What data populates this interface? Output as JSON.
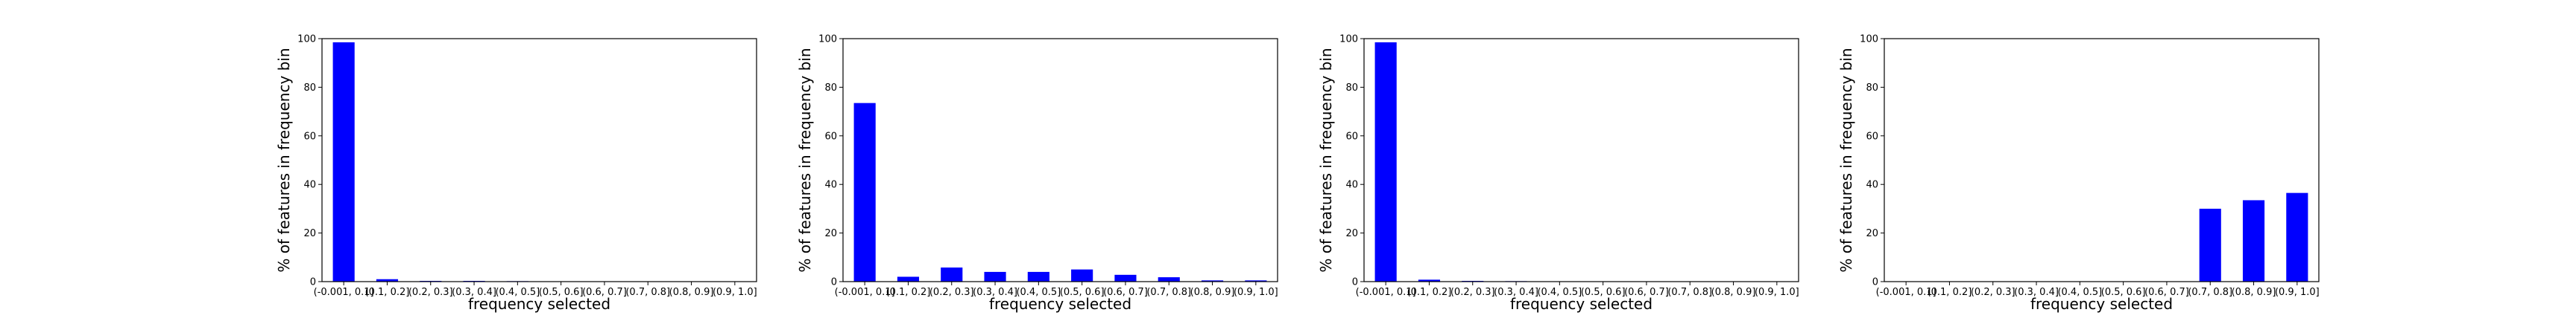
{
  "chart_data": [
    {
      "type": "bar",
      "categories": [
        "(-0.001, 0.1]",
        "(0.1, 0.2]",
        "(0.2, 0.3]",
        "(0.3, 0.4]",
        "(0.4, 0.5]",
        "(0.5, 0.6]",
        "(0.6, 0.7]",
        "(0.7, 0.8]",
        "(0.8, 0.9]",
        "(0.9, 1.0]"
      ],
      "values": [
        98.5,
        1.0,
        0.3,
        0.3,
        0.2,
        0.1,
        0.1,
        0.1,
        0.1,
        0.1
      ],
      "xlabel": "frequency selected",
      "ylabel": "% of features in frequency bin",
      "ylim": [
        0,
        100
      ],
      "yticks": [
        0,
        20,
        40,
        60,
        80,
        100
      ],
      "grid": false,
      "color": "#0000ff"
    },
    {
      "type": "bar",
      "categories": [
        "(-0.001, 0.1]",
        "(0.1, 0.2]",
        "(0.2, 0.3]",
        "(0.3, 0.4]",
        "(0.4, 0.5]",
        "(0.5, 0.6]",
        "(0.6, 0.7]",
        "(0.7, 0.8]",
        "(0.8, 0.9]",
        "(0.9, 1.0]"
      ],
      "values": [
        73.5,
        2.0,
        5.8,
        4.0,
        4.0,
        5.0,
        2.8,
        1.8,
        0.5,
        0.5
      ],
      "xlabel": "frequency selected",
      "ylabel": "% of features in frequency bin",
      "ylim": [
        0,
        100
      ],
      "yticks": [
        0,
        20,
        40,
        60,
        80,
        100
      ],
      "grid": false,
      "color": "#0000ff"
    },
    {
      "type": "bar",
      "categories": [
        "(-0.001, 0.1]",
        "(0.1, 0.2]",
        "(0.2, 0.3]",
        "(0.3, 0.4]",
        "(0.4, 0.5]",
        "(0.5, 0.6]",
        "(0.6, 0.7]",
        "(0.7, 0.8]",
        "(0.8, 0.9]",
        "(0.9, 1.0]"
      ],
      "values": [
        98.5,
        0.8,
        0.3,
        0.2,
        0.1,
        0.1,
        0.0,
        0.0,
        0.0,
        0.0
      ],
      "xlabel": "frequency selected",
      "ylabel": "% of features in frequency bin",
      "ylim": [
        0,
        100
      ],
      "yticks": [
        0,
        20,
        40,
        60,
        80,
        100
      ],
      "grid": false,
      "color": "#0000ff"
    },
    {
      "type": "bar",
      "categories": [
        "(-0.001, 0.1]",
        "(0.1, 0.2]",
        "(0.2, 0.3]",
        "(0.3, 0.4]",
        "(0.4, 0.5]",
        "(0.5, 0.6]",
        "(0.6, 0.7]",
        "(0.7, 0.8]",
        "(0.8, 0.9]",
        "(0.9, 1.0]"
      ],
      "values": [
        0,
        0,
        0,
        0,
        0,
        0,
        0,
        30.0,
        33.5,
        36.5
      ],
      "xlabel": "frequency selected",
      "ylabel": "% of features in frequency bin",
      "ylim": [
        0,
        100
      ],
      "yticks": [
        0,
        20,
        40,
        60,
        80,
        100
      ],
      "grid": false,
      "color": "#0000ff"
    }
  ]
}
